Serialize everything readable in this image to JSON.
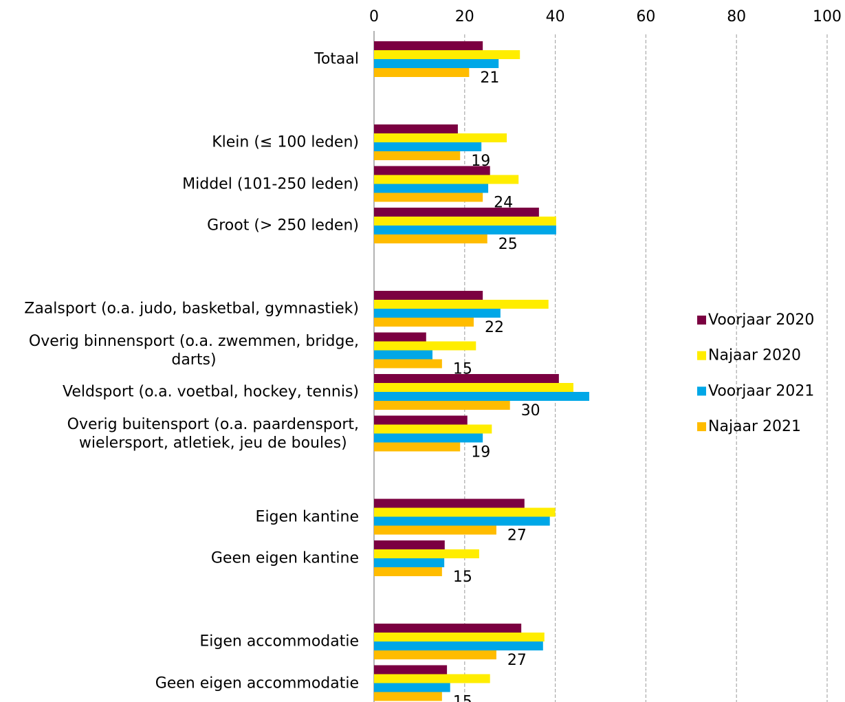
{
  "chart_data": {
    "type": "bar",
    "orientation": "horizontal",
    "categories": [
      "Totaal",
      null,
      "Klein (≤ 100 leden)",
      "Middel (101-250 leden)",
      "Groot (> 250 leden)",
      null,
      "Zaalsport (o.a. judo, basketbal, gymnastiek)",
      "Overig binnensport (o.a. zwemmen, bridge,\ndarts)",
      "Veldsport (o.a. voetbal, hockey, tennis)",
      "Overig buitensport (o.a. paardensport,\nwielersport, atletiek, jeu de boules)",
      null,
      "Eigen kantine",
      "Geen eigen kantine",
      null,
      "Eigen accommodatie",
      "Geen eigen accommodatie"
    ],
    "series": [
      {
        "name": "Voorjaar 2020",
        "color": "#7b0041",
        "values": [
          24,
          null,
          18.5,
          25.6,
          36.4,
          null,
          24,
          11.5,
          40.8,
          20.6,
          null,
          33.2,
          15.6,
          null,
          32.5,
          16.1
        ]
      },
      {
        "name": "Najaar 2020",
        "color": "#ffed00",
        "values": [
          32.2,
          null,
          29.3,
          31.9,
          40.2,
          null,
          38.5,
          22.5,
          44,
          26,
          null,
          40,
          23.2,
          null,
          37.6,
          25.6
        ]
      },
      {
        "name": "Voorjaar 2021",
        "color": "#00a7e7",
        "values": [
          27.5,
          null,
          23.7,
          25.2,
          40.2,
          null,
          27.9,
          12.9,
          47.5,
          24,
          null,
          38.8,
          15.5,
          null,
          37.3,
          16.8
        ]
      },
      {
        "name": "Najaar 2021",
        "color": "#ffbc00",
        "data_labels": true,
        "values": [
          21,
          null,
          19,
          24,
          25,
          null,
          22,
          15,
          30,
          19,
          null,
          27,
          15,
          null,
          27,
          15
        ]
      }
    ],
    "xlim": [
      0,
      100
    ],
    "xticks": [
      0,
      20,
      40,
      60,
      80,
      100
    ],
    "grid": true,
    "legend": "right"
  }
}
